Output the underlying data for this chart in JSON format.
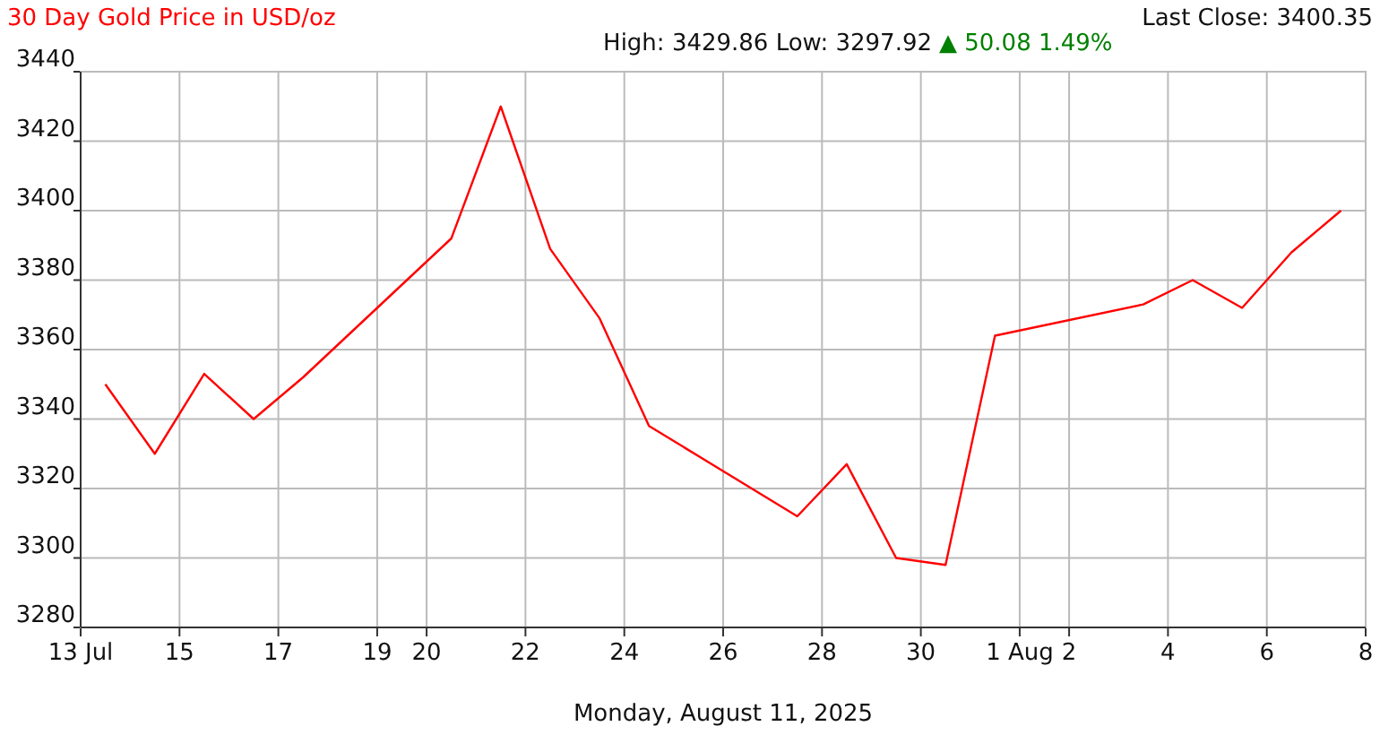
{
  "chart_data": {
    "type": "line",
    "title": "30 Day Gold Price in USD/oz",
    "subtitle": "High: 3429.86 Low: 3297.92",
    "annotations": [
      "▲ 50.08 1.49%",
      "Last Close: 3400.35"
    ],
    "xlabel": "Monday, August 11, 2025",
    "x": [
      "2025-07-13T12:00",
      "2025-07-14T12:00",
      "2025-07-15T12:00",
      "2025-07-16T12:00",
      "2025-07-17T12:00",
      "2025-07-20T12:00",
      "2025-07-21T12:00",
      "2025-07-22T12:00",
      "2025-07-23T12:00",
      "2025-07-24T12:00",
      "2025-07-27T12:00",
      "2025-07-28T12:00",
      "2025-07-29T12:00",
      "2025-07-30T12:00",
      "2025-07-31T12:00",
      "2025-08-03T12:00",
      "2025-08-04T12:00",
      "2025-08-05T12:00",
      "2025-08-06T12:00",
      "2025-08-07T12:00"
    ],
    "series": [
      {
        "color": "#ff0000",
        "values": [
          3350,
          3330,
          3353,
          3340,
          3352,
          3392,
          3430,
          3389,
          3369,
          3338,
          3312,
          3327,
          3300,
          3298,
          3364,
          3373,
          3380,
          3372,
          3388,
          3400
        ]
      }
    ],
    "xlim": [
      "2025-07-13",
      "2025-08-08"
    ],
    "xticks": [
      {
        "value": "2025-07-13",
        "label": "13 Jul"
      },
      {
        "value": "2025-07-15",
        "label": "15"
      },
      {
        "value": "2025-07-17",
        "label": "17"
      },
      {
        "value": "2025-07-19",
        "label": "19"
      },
      {
        "value": "2025-07-20",
        "label": "20"
      },
      {
        "value": "2025-07-22",
        "label": "22"
      },
      {
        "value": "2025-07-24",
        "label": "24"
      },
      {
        "value": "2025-07-26",
        "label": "26"
      },
      {
        "value": "2025-07-28",
        "label": "28"
      },
      {
        "value": "2025-07-30",
        "label": "30"
      },
      {
        "value": "2025-08-01",
        "label": "1 Aug"
      },
      {
        "value": "2025-08-02",
        "label": "2"
      },
      {
        "value": "2025-08-04",
        "label": "4"
      },
      {
        "value": "2025-08-06",
        "label": "6"
      },
      {
        "value": "2025-08-08",
        "label": "8"
      }
    ],
    "ylim": [
      3280,
      3440
    ],
    "yticks": [
      3280,
      3300,
      3320,
      3340,
      3360,
      3380,
      3400,
      3420,
      3440
    ],
    "grid": true,
    "marker": "none",
    "line_style": "solid"
  }
}
